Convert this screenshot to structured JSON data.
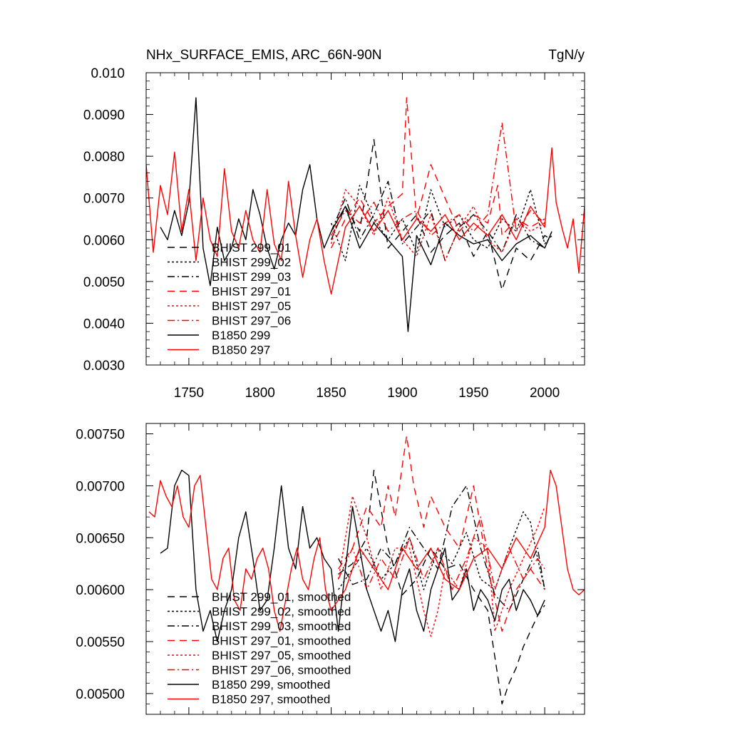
{
  "header": {
    "title": "NHx_SURFACE_EMIS, ARC_66N-90N",
    "units": "TgN/y"
  },
  "legend_styles": {
    "BHIST 299_01": {
      "color": "#000000",
      "dash": "10,7"
    },
    "BHIST 299_02": {
      "color": "#000000",
      "dash": "3,3"
    },
    "BHIST 299_03": {
      "color": "#000000",
      "dash": "10,4,2,4"
    },
    "BHIST 297_01": {
      "color": "#ff0000",
      "dash": "10,7"
    },
    "BHIST 297_05": {
      "color": "#ff0000",
      "dash": "3,3"
    },
    "BHIST 297_06": {
      "color": "#ff0000",
      "dash": "10,4,2,4"
    },
    "B1850 299": {
      "color": "#000000",
      "dash": ""
    },
    "B1850 297": {
      "color": "#ff0000",
      "dash": ""
    }
  },
  "chart_data": [
    {
      "type": "line",
      "title": "NHx_SURFACE_EMIS, ARC_66N-90N",
      "units": "TgN/y",
      "xlim": [
        1720,
        2028
      ],
      "ylim": [
        0.003,
        0.01
      ],
      "xticks": [
        1750,
        1800,
        1850,
        1900,
        1950,
        2000
      ],
      "yticks": [
        "0.010",
        "0.0090",
        "0.0080",
        "0.0070",
        "0.0060",
        "0.0050",
        "0.0040",
        "0.0030"
      ],
      "legend": [
        "BHIST 299_01",
        "BHIST 299_02",
        "BHIST 299_03",
        "BHIST 297_01",
        "BHIST 297_05",
        "BHIST 297_06",
        "B1850 299",
        "B1850 297"
      ],
      "series": [
        {
          "name": "BHIST 299_01",
          "x": [
            1850,
            1860,
            1870,
            1880,
            1890,
            1900,
            1910,
            1920,
            1930,
            1940,
            1950,
            1960,
            1970,
            1980,
            1990,
            2000,
            2005
          ],
          "values": [
            0.006,
            0.0068,
            0.0062,
            0.0084,
            0.0058,
            0.0062,
            0.0066,
            0.0057,
            0.0061,
            0.0064,
            0.0056,
            0.0062,
            0.0048,
            0.0058,
            0.0055,
            0.0061,
            0.006
          ]
        },
        {
          "name": "BHIST 299_02",
          "x": [
            1850,
            1860,
            1870,
            1880,
            1890,
            1900,
            1910,
            1920,
            1930,
            1940,
            1950,
            1960,
            1970,
            1980,
            1990,
            2000,
            2005
          ],
          "values": [
            0.0064,
            0.0055,
            0.0073,
            0.0065,
            0.006,
            0.0065,
            0.0057,
            0.0072,
            0.0063,
            0.0066,
            0.006,
            0.0058,
            0.0065,
            0.0062,
            0.0072,
            0.0059,
            0.0061
          ]
        },
        {
          "name": "BHIST 299_03",
          "x": [
            1850,
            1860,
            1870,
            1880,
            1890,
            1900,
            1910,
            1920,
            1930,
            1940,
            1950,
            1960,
            1970,
            1980,
            1990,
            2000,
            2005
          ],
          "values": [
            0.0062,
            0.007,
            0.006,
            0.0066,
            0.0074,
            0.0059,
            0.0063,
            0.0067,
            0.0055,
            0.0063,
            0.0066,
            0.0062,
            0.0057,
            0.0066,
            0.006,
            0.0058,
            0.0062
          ]
        },
        {
          "name": "BHIST 297_01",
          "x": [
            1850,
            1860,
            1870,
            1880,
            1890,
            1900,
            1903,
            1910,
            1920,
            1930,
            1940,
            1950,
            1960,
            1967,
            1970,
            1980,
            1990,
            2000
          ],
          "values": [
            0.0058,
            0.0065,
            0.007,
            0.0064,
            0.0068,
            0.0071,
            0.0094,
            0.0065,
            0.0078,
            0.007,
            0.0062,
            0.0066,
            0.0064,
            0.0073,
            0.0061,
            0.0065,
            0.0063,
            0.0065
          ]
        },
        {
          "name": "BHIST 297_05",
          "x": [
            1850,
            1860,
            1870,
            1880,
            1890,
            1900,
            1910,
            1920,
            1930,
            1940,
            1950,
            1960,
            1970,
            1980,
            1990,
            2000
          ],
          "values": [
            0.0059,
            0.0072,
            0.0068,
            0.0061,
            0.007,
            0.006,
            0.0056,
            0.0066,
            0.0055,
            0.0063,
            0.0068,
            0.006,
            0.0057,
            0.0065,
            0.0062,
            0.0064
          ]
        },
        {
          "name": "BHIST 297_06",
          "x": [
            1850,
            1860,
            1870,
            1880,
            1890,
            1900,
            1910,
            1920,
            1930,
            1940,
            1950,
            1960,
            1970,
            1980,
            1990,
            2000
          ],
          "values": [
            0.0061,
            0.0067,
            0.0064,
            0.0069,
            0.0062,
            0.0065,
            0.0067,
            0.0061,
            0.0064,
            0.0066,
            0.0062,
            0.0066,
            0.0088,
            0.0062,
            0.0067,
            0.0064
          ]
        },
        {
          "name": "B1850 299",
          "x": [
            1730,
            1735,
            1740,
            1745,
            1750,
            1755,
            1760,
            1765,
            1770,
            1775,
            1780,
            1785,
            1790,
            1795,
            1800,
            1805,
            1810,
            1815,
            1820,
            1825,
            1830,
            1835,
            1840,
            1845,
            1850,
            1860,
            1870,
            1880,
            1890,
            1900,
            1904,
            1910,
            1920,
            1930,
            1940,
            1950,
            1960,
            1970,
            1980,
            1990,
            2000,
            2005
          ],
          "values": [
            0.0063,
            0.006,
            0.0067,
            0.0061,
            0.0069,
            0.0094,
            0.0058,
            0.0049,
            0.0063,
            0.0055,
            0.0058,
            0.0065,
            0.006,
            0.0072,
            0.0066,
            0.0058,
            0.0053,
            0.006,
            0.0064,
            0.0061,
            0.0072,
            0.0078,
            0.0065,
            0.0058,
            0.0062,
            0.0068,
            0.0058,
            0.0064,
            0.006,
            0.0056,
            0.0038,
            0.0061,
            0.0054,
            0.0064,
            0.0061,
            0.0059,
            0.006,
            0.0055,
            0.0059,
            0.0061,
            0.0058,
            0.0062
          ]
        },
        {
          "name": "B1850 297",
          "x": [
            1720,
            1725,
            1730,
            1735,
            1740,
            1745,
            1750,
            1755,
            1760,
            1765,
            1770,
            1775,
            1780,
            1785,
            1790,
            1795,
            1800,
            1805,
            1810,
            1815,
            1820,
            1825,
            1830,
            1835,
            1840,
            1845,
            1850,
            1860,
            1870,
            1880,
            1890,
            1900,
            1910,
            1920,
            1930,
            1940,
            1950,
            1960,
            1970,
            1980,
            1990,
            2000,
            2005,
            2008,
            2012,
            2016,
            2020,
            2024,
            2028
          ],
          "values": [
            0.0078,
            0.0057,
            0.0073,
            0.0066,
            0.0081,
            0.0062,
            0.0072,
            0.0055,
            0.007,
            0.006,
            0.0056,
            0.0077,
            0.0062,
            0.0058,
            0.0067,
            0.006,
            0.0057,
            0.0072,
            0.0059,
            0.0055,
            0.0074,
            0.0061,
            0.0051,
            0.006,
            0.0065,
            0.0055,
            0.0047,
            0.0063,
            0.0068,
            0.0062,
            0.0067,
            0.006,
            0.0065,
            0.0062,
            0.0066,
            0.006,
            0.0064,
            0.0061,
            0.0066,
            0.006,
            0.0068,
            0.0063,
            0.0082,
            0.0069,
            0.0063,
            0.0058,
            0.0065,
            0.0052,
            0.0068
          ]
        }
      ]
    },
    {
      "type": "line",
      "title": "",
      "xlim": [
        1720,
        2028
      ],
      "ylim": [
        0.0048,
        0.0076
      ],
      "yticks": [
        "0.00750",
        "0.00700",
        "0.00650",
        "0.00600",
        "0.00550",
        "0.00500"
      ],
      "legend": [
        "BHIST 299_01, smoothed",
        "BHIST 299_02, smoothed",
        "BHIST 299_03, smoothed",
        "BHIST 297_01, smoothed",
        "BHIST 297_05, smoothed",
        "BHIST 297_06, smoothed",
        "B1850 299, smoothed",
        "B1850 297, smoothed"
      ],
      "series": [
        {
          "name": "BHIST 299_01, smoothed",
          "x": [
            1855,
            1865,
            1875,
            1880,
            1890,
            1900,
            1910,
            1920,
            1930,
            1940,
            1950,
            1960,
            1965,
            1970,
            1975,
            1980,
            1985,
            1990,
            1995,
            2000
          ],
          "values": [
            0.00615,
            0.00625,
            0.0065,
            0.00715,
            0.0064,
            0.00595,
            0.0061,
            0.0064,
            0.0062,
            0.00625,
            0.006,
            0.0058,
            0.00535,
            0.0049,
            0.0051,
            0.00525,
            0.00545,
            0.0056,
            0.00575,
            0.00585
          ]
        },
        {
          "name": "BHIST 299_02, smoothed",
          "x": [
            1855,
            1865,
            1875,
            1885,
            1895,
            1905,
            1915,
            1925,
            1935,
            1945,
            1955,
            1965,
            1975,
            1985,
            1990,
            1995,
            2000
          ],
          "values": [
            0.006,
            0.0062,
            0.0064,
            0.0061,
            0.00625,
            0.0065,
            0.006,
            0.0064,
            0.00625,
            0.00655,
            0.0061,
            0.006,
            0.0064,
            0.00675,
            0.00665,
            0.0063,
            0.006
          ]
        },
        {
          "name": "BHIST 299_03, smoothed",
          "x": [
            1855,
            1865,
            1875,
            1885,
            1895,
            1905,
            1915,
            1925,
            1935,
            1945,
            1955,
            1965,
            1975,
            1985,
            1995,
            2000
          ],
          "values": [
            0.0063,
            0.00605,
            0.0061,
            0.0064,
            0.00625,
            0.0066,
            0.0064,
            0.0062,
            0.0068,
            0.007,
            0.0064,
            0.00595,
            0.0058,
            0.0061,
            0.0064,
            0.006
          ]
        },
        {
          "name": "BHIST 297_01, smoothed",
          "x": [
            1855,
            1865,
            1875,
            1885,
            1890,
            1895,
            1900,
            1903,
            1908,
            1915,
            1920,
            1930,
            1940,
            1950,
            1960,
            1970,
            1980,
            1990,
            2000
          ],
          "values": [
            0.0062,
            0.0064,
            0.0068,
            0.0066,
            0.007,
            0.0067,
            0.0072,
            0.00748,
            0.007,
            0.0066,
            0.0069,
            0.0066,
            0.0064,
            0.007,
            0.0062,
            0.0056,
            0.006,
            0.0062,
            0.006
          ]
        },
        {
          "name": "BHIST 297_05, smoothed",
          "x": [
            1855,
            1865,
            1875,
            1885,
            1895,
            1905,
            1915,
            1920,
            1925,
            1930,
            1940,
            1950,
            1960,
            1965,
            1975,
            1985,
            1995,
            2000
          ],
          "values": [
            0.0061,
            0.0069,
            0.0065,
            0.006,
            0.0064,
            0.0064,
            0.0058,
            0.00555,
            0.0058,
            0.0062,
            0.006,
            0.0065,
            0.0064,
            0.0056,
            0.006,
            0.0063,
            0.0066,
            0.0068
          ]
        },
        {
          "name": "BHIST 297_06, smoothed",
          "x": [
            1855,
            1865,
            1875,
            1885,
            1895,
            1905,
            1915,
            1925,
            1935,
            1945,
            1955,
            1965,
            1975,
            1985,
            1995,
            2000
          ],
          "values": [
            0.0061,
            0.0064,
            0.006,
            0.0063,
            0.0061,
            0.0065,
            0.0061,
            0.0064,
            0.006,
            0.0063,
            0.0067,
            0.006,
            0.0064,
            0.0061,
            0.0063,
            0.0062
          ]
        },
        {
          "name": "B1850 299, smoothed",
          "x": [
            1730,
            1735,
            1740,
            1745,
            1750,
            1755,
            1760,
            1765,
            1770,
            1775,
            1780,
            1785,
            1790,
            1795,
            1800,
            1805,
            1810,
            1815,
            1820,
            1825,
            1830,
            1835,
            1840,
            1845,
            1850,
            1855,
            1860,
            1865,
            1870,
            1875,
            1880,
            1885,
            1890,
            1895,
            1900,
            1905,
            1910,
            1915,
            1920,
            1925,
            1930,
            1935,
            1940,
            1945,
            1950,
            1955,
            1960,
            1965,
            1970,
            1975,
            1980,
            1985,
            1990,
            1995,
            2000
          ],
          "values": [
            0.00635,
            0.0064,
            0.007,
            0.00715,
            0.0071,
            0.006,
            0.0056,
            0.0058,
            0.0055,
            0.0058,
            0.006,
            0.0065,
            0.00675,
            0.0063,
            0.0058,
            0.0059,
            0.0064,
            0.007,
            0.0064,
            0.0062,
            0.0068,
            0.0064,
            0.0065,
            0.0063,
            0.0062,
            0.0056,
            0.0062,
            0.0068,
            0.0064,
            0.006,
            0.0058,
            0.0056,
            0.0058,
            0.0055,
            0.006,
            0.0062,
            0.0058,
            0.0056,
            0.006,
            0.0062,
            0.0064,
            0.0059,
            0.006,
            0.0062,
            0.0058,
            0.006,
            0.0059,
            0.0057,
            0.006,
            0.0061,
            0.0058,
            0.006,
            0.0059,
            0.00575,
            0.0059
          ]
        },
        {
          "name": "B1850 297, smoothed",
          "x": [
            1722,
            1726,
            1730,
            1734,
            1738,
            1742,
            1746,
            1750,
            1754,
            1758,
            1762,
            1766,
            1770,
            1774,
            1778,
            1782,
            1786,
            1790,
            1794,
            1798,
            1802,
            1806,
            1810,
            1814,
            1818,
            1822,
            1826,
            1830,
            1834,
            1838,
            1842,
            1846,
            1850,
            1860,
            1870,
            1880,
            1890,
            1900,
            1910,
            1920,
            1930,
            1940,
            1950,
            1960,
            1970,
            1980,
            1990,
            2000,
            2004,
            2008,
            2012,
            2016,
            2020,
            2024,
            2028
          ],
          "values": [
            0.00675,
            0.0067,
            0.00705,
            0.0069,
            0.0068,
            0.007,
            0.0067,
            0.0066,
            0.007,
            0.0071,
            0.0066,
            0.0061,
            0.006,
            0.0063,
            0.0064,
            0.0059,
            0.0058,
            0.0062,
            0.0061,
            0.0063,
            0.0064,
            0.0062,
            0.0058,
            0.0056,
            0.0059,
            0.0062,
            0.0064,
            0.0061,
            0.006,
            0.0063,
            0.0065,
            0.006,
            0.0058,
            0.006,
            0.0064,
            0.0062,
            0.006,
            0.0064,
            0.0062,
            0.0064,
            0.0061,
            0.006,
            0.0063,
            0.0064,
            0.0062,
            0.0065,
            0.0063,
            0.0066,
            0.00715,
            0.007,
            0.0066,
            0.0062,
            0.006,
            0.00595,
            0.006
          ]
        }
      ]
    }
  ]
}
